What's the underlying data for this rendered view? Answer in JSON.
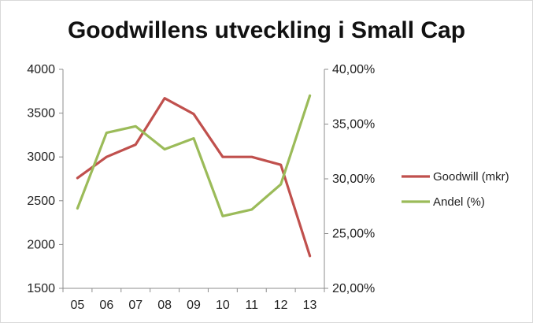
{
  "chart_data": {
    "type": "line",
    "title": "Goodwillens utveckling i Small Cap",
    "categories": [
      "05",
      "06",
      "07",
      "08",
      "09",
      "10",
      "11",
      "12",
      "13"
    ],
    "y_left": {
      "range": [
        1500,
        4000
      ],
      "ticks": [
        "1500",
        "2000",
        "2500",
        "3000",
        "3500",
        "4000"
      ]
    },
    "y_right": {
      "range": [
        20,
        40
      ],
      "ticks": [
        "20,00%",
        "25,00%",
        "30,00%",
        "35,00%",
        "40,00%"
      ]
    },
    "series": [
      {
        "name": "Goodwill (mkr)",
        "axis": "left",
        "color": "#c0504d",
        "values": [
          2760,
          3000,
          3140,
          3670,
          3490,
          3000,
          3000,
          2910,
          1870
        ]
      },
      {
        "name": "Andel (%)",
        "axis": "right",
        "color": "#9bbb59",
        "values": [
          27.3,
          34.2,
          34.8,
          32.7,
          33.7,
          26.6,
          27.2,
          29.5,
          37.6
        ]
      }
    ],
    "legend_position": "right",
    "grid": false
  }
}
